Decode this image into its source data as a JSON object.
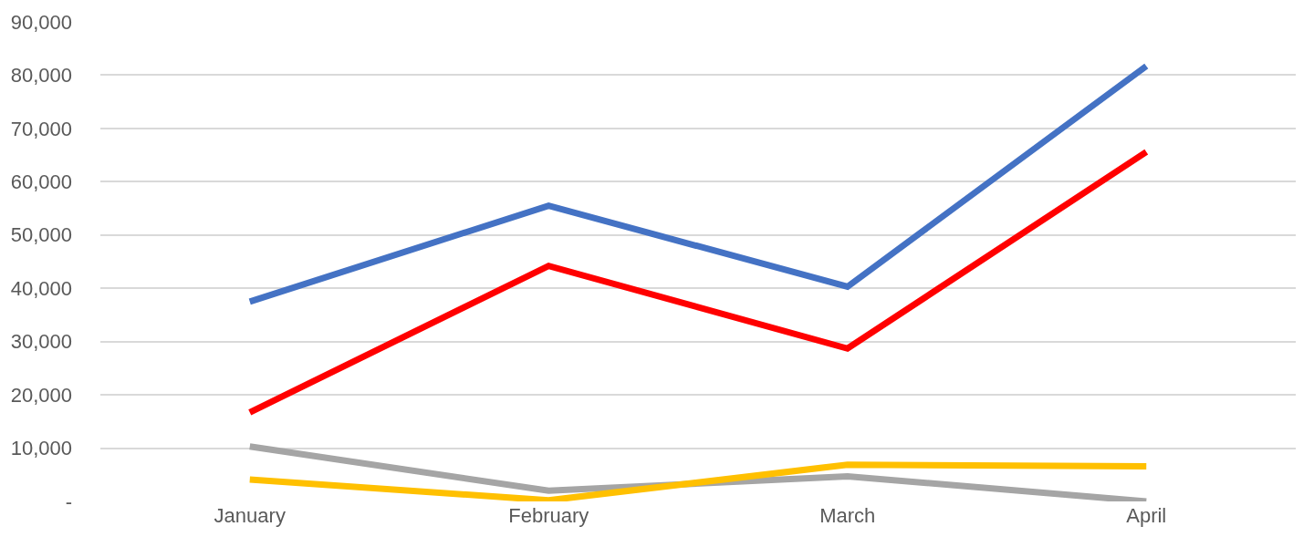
{
  "chart_data": {
    "type": "line",
    "categories": [
      "January",
      "February",
      "March",
      "April"
    ],
    "series": [
      {
        "color": "#4472c4",
        "values": [
          37500,
          55500,
          40300,
          81700
        ]
      },
      {
        "color": "#ff0000",
        "values": [
          16700,
          44200,
          28700,
          65600
        ]
      },
      {
        "color": "#a5a5a5",
        "values": [
          10300,
          2000,
          4700,
          0
        ]
      },
      {
        "color": "#ffc000",
        "values": [
          4100,
          200,
          6900,
          6600
        ]
      }
    ],
    "ylim": [
      0,
      90000
    ],
    "yticks": [
      {
        "value": 0,
        "label": "-"
      },
      {
        "value": 10000,
        "label": "10,000"
      },
      {
        "value": 20000,
        "label": "20,000"
      },
      {
        "value": 30000,
        "label": "30,000"
      },
      {
        "value": 40000,
        "label": "40,000"
      },
      {
        "value": 50000,
        "label": "50,000"
      },
      {
        "value": 60000,
        "label": "60,000"
      },
      {
        "value": 70000,
        "label": "70,000"
      },
      {
        "value": 80000,
        "label": "80,000"
      },
      {
        "value": 90000,
        "label": "90,000"
      }
    ],
    "grid": "y",
    "marker": "none",
    "line_style": "solid"
  }
}
